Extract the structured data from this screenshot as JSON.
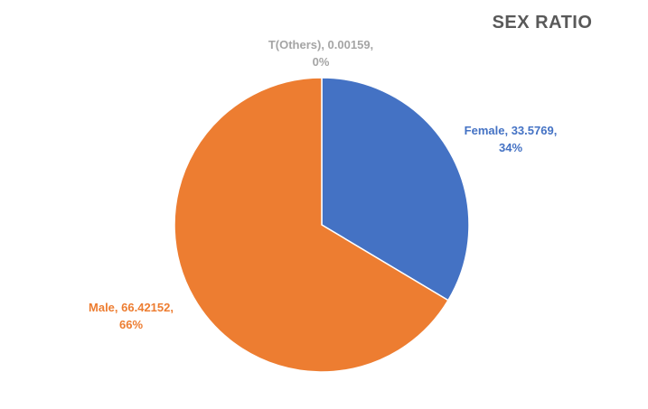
{
  "chart_data": {
    "type": "pie",
    "title": "SEX RATIO",
    "slices": [
      {
        "name": "T(Others)",
        "value": 0.00159,
        "percent_label": "0%",
        "label_line1": "T(Others), 0.00159,",
        "label_line2": "0%",
        "color": "#a5a5a5"
      },
      {
        "name": "Female",
        "value": 33.5769,
        "percent_label": "34%",
        "label_line1": "Female, 33.5769,",
        "label_line2": "34%",
        "color": "#4472c4"
      },
      {
        "name": "Male",
        "value": 66.42152,
        "percent_label": "66%",
        "label_line1": "Male, 66.42152,",
        "label_line2": "66%",
        "color": "#ed7d31"
      }
    ],
    "start_angle": "12 o'clock",
    "direction": "clockwise",
    "legend": "none",
    "slice_border_color": "#ffffff"
  }
}
